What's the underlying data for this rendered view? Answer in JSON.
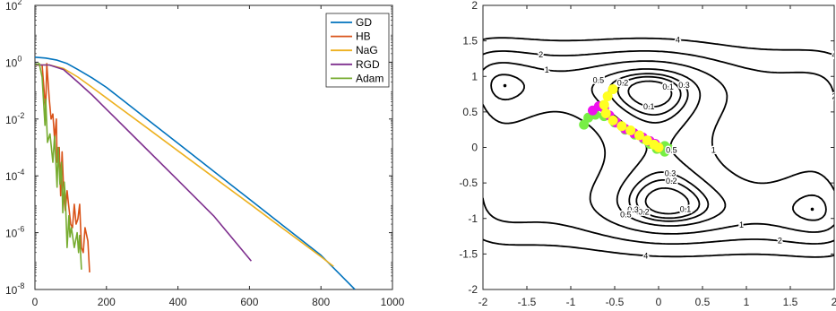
{
  "chart_data": [
    {
      "type": "line",
      "title": "",
      "xlabel": "",
      "ylabel": "",
      "xlim": [
        0,
        1000
      ],
      "ylim": [
        1e-08,
        100
      ],
      "yscale": "log",
      "grid": false,
      "legend_position": "top-right",
      "x_ticks": [
        "0",
        "200",
        "400",
        "600",
        "800",
        "1000"
      ],
      "y_ticks": [
        {
          "base": "10",
          "exp": "2"
        },
        {
          "base": "10",
          "exp": "0"
        },
        {
          "base": "10",
          "exp": "-2"
        },
        {
          "base": "10",
          "exp": "-4"
        },
        {
          "base": "10",
          "exp": "-6"
        },
        {
          "base": "10",
          "exp": "-8"
        }
      ],
      "series": [
        {
          "name": "GD",
          "color": "#0072BD",
          "points": [
            [
              0,
              1.5
            ],
            [
              30,
              1.4
            ],
            [
              60,
              1.2
            ],
            [
              90,
              0.9
            ],
            [
              120,
              0.55
            ],
            [
              160,
              0.28
            ],
            [
              200,
              0.13
            ],
            [
              300,
              0.0135
            ],
            [
              400,
              0.0014
            ],
            [
              500,
              0.000145
            ],
            [
              600,
              1.5e-05
            ],
            [
              700,
              1.55e-06
            ],
            [
              800,
              1.6e-07
            ],
            [
              895,
              1e-08
            ]
          ]
        },
        {
          "name": "HB",
          "color": "#D95319",
          "points": [
            [
              0,
              0.8
            ],
            [
              20,
              0.8
            ],
            [
              30,
              0.02
            ],
            [
              33,
              0.9
            ],
            [
              40,
              0.05
            ],
            [
              45,
              0.01
            ],
            [
              50,
              0.015
            ],
            [
              55,
              0.002
            ],
            [
              60,
              0.01
            ],
            [
              62,
              0.0003
            ],
            [
              68,
              0.001
            ],
            [
              72,
              2e-05
            ],
            [
              76,
              0.0007
            ],
            [
              80,
              4e-05
            ],
            [
              85,
              6e-06
            ],
            [
              90,
              3e-05
            ],
            [
              94,
              1e-05
            ],
            [
              100,
              2e-06
            ],
            [
              105,
              1.5e-06
            ],
            [
              110,
              1e-05
            ],
            [
              115,
              2e-06
            ],
            [
              120,
              3e-06
            ],
            [
              125,
              1e-05
            ],
            [
              130,
              3e-07
            ],
            [
              135,
              2e-07
            ],
            [
              140,
              1.5e-06
            ],
            [
              148,
              5e-07
            ],
            [
              153,
              4e-08
            ]
          ]
        },
        {
          "name": "NaG",
          "color": "#EDB120",
          "points": [
            [
              0,
              0.8
            ],
            [
              40,
              0.8
            ],
            [
              80,
              0.6
            ],
            [
              120,
              0.3
            ],
            [
              160,
              0.13
            ],
            [
              200,
              0.055
            ],
            [
              300,
              0.0065
            ],
            [
              400,
              0.00076
            ],
            [
              500,
              8.9e-05
            ],
            [
              600,
              1.05e-05
            ],
            [
              700,
              1.22e-06
            ],
            [
              800,
              1.43e-07
            ],
            [
              835,
              6.5e-08
            ]
          ]
        },
        {
          "name": "RGD",
          "color": "#7E2F8E",
          "points": [
            [
              0,
              0.8
            ],
            [
              40,
              0.8
            ],
            [
              80,
              0.55
            ],
            [
              120,
              0.2
            ],
            [
              160,
              0.07
            ],
            [
              200,
              0.022
            ],
            [
              300,
              0.00124
            ],
            [
              400,
              7e-05
            ],
            [
              500,
              3.9e-06
            ],
            [
              605,
              1e-07
            ]
          ]
        },
        {
          "name": "Adam",
          "color": "#77AC30",
          "points": [
            [
              0,
              0.8
            ],
            [
              12,
              0.9
            ],
            [
              20,
              0.3
            ],
            [
              28,
              0.006
            ],
            [
              30,
              0.05
            ],
            [
              35,
              0.0015
            ],
            [
              42,
              0.003
            ],
            [
              50,
              0.0003
            ],
            [
              55,
              0.0025
            ],
            [
              62,
              4e-05
            ],
            [
              65,
              0.001
            ],
            [
              70,
              5e-05
            ],
            [
              74,
              0.0003
            ],
            [
              78,
              5e-06
            ],
            [
              82,
              6e-05
            ],
            [
              85,
              2e-05
            ],
            [
              90,
              3e-07
            ],
            [
              95,
              4e-06
            ],
            [
              98,
              7e-07
            ],
            [
              102,
              1.5e-06
            ],
            [
              110,
              3e-07
            ],
            [
              118,
              1e-06
            ],
            [
              122,
              2e-07
            ],
            [
              125,
              8e-07
            ],
            [
              130,
              5e-08
            ]
          ]
        }
      ]
    },
    {
      "type": "contour",
      "title": "",
      "xlabel": "",
      "ylabel": "",
      "xlim": [
        -2,
        2
      ],
      "ylim": [
        -2,
        2
      ],
      "grid": false,
      "x_ticks": [
        "-2",
        "-1.5",
        "-1",
        "-0.5",
        "0",
        "0.5",
        "1",
        "1.5",
        "2"
      ],
      "y_ticks": [
        "2",
        "1.5",
        "1",
        "0.5",
        "0",
        "-0.5",
        "-1",
        "-1.5",
        "-2"
      ],
      "levels": [
        0.1,
        0.2,
        0.3,
        0.5,
        1,
        2,
        4
      ],
      "level_labels": [
        "0.1",
        "0.2",
        "0.3",
        "0.5",
        "1",
        "2",
        "4"
      ],
      "minima": [
        [
          -1.75,
          0.87
        ],
        [
          0,
          0
        ],
        [
          1.75,
          -0.87
        ]
      ],
      "trajectories": [
        {
          "color": "#77EE44",
          "points": [
            [
              -0.85,
              0.32
            ],
            [
              -0.8,
              0.42
            ],
            [
              -0.72,
              0.46
            ],
            [
              -0.62,
              0.44
            ],
            [
              -0.5,
              0.35
            ],
            [
              -0.38,
              0.25
            ],
            [
              -0.27,
              0.18
            ],
            [
              -0.17,
              0.12
            ],
            [
              -0.1,
              0.05
            ],
            [
              -0.02,
              -0.02
            ],
            [
              0.07,
              -0.06
            ],
            [
              0.12,
              -0.02
            ],
            [
              0.07,
              0.02
            ],
            [
              0.0,
              0.0
            ]
          ]
        },
        {
          "color": "#EE11EE",
          "points": [
            [
              -0.75,
              0.52
            ],
            [
              -0.68,
              0.58
            ],
            [
              -0.62,
              0.55
            ],
            [
              -0.56,
              0.45
            ],
            [
              -0.48,
              0.35
            ],
            [
              -0.38,
              0.26
            ],
            [
              -0.28,
              0.2
            ],
            [
              -0.18,
              0.14
            ],
            [
              -0.1,
              0.09
            ],
            [
              -0.04,
              0.05
            ],
            [
              0.0,
              0.0
            ]
          ]
        },
        {
          "color": "#FFFF22",
          "points": [
            [
              -0.52,
              0.82
            ],
            [
              -0.58,
              0.72
            ],
            [
              -0.62,
              0.6
            ],
            [
              -0.6,
              0.48
            ],
            [
              -0.52,
              0.38
            ],
            [
              -0.42,
              0.3
            ],
            [
              -0.32,
              0.24
            ],
            [
              -0.22,
              0.17
            ],
            [
              -0.13,
              0.1
            ],
            [
              -0.05,
              0.04
            ],
            [
              0.0,
              0.0
            ]
          ]
        }
      ]
    }
  ]
}
